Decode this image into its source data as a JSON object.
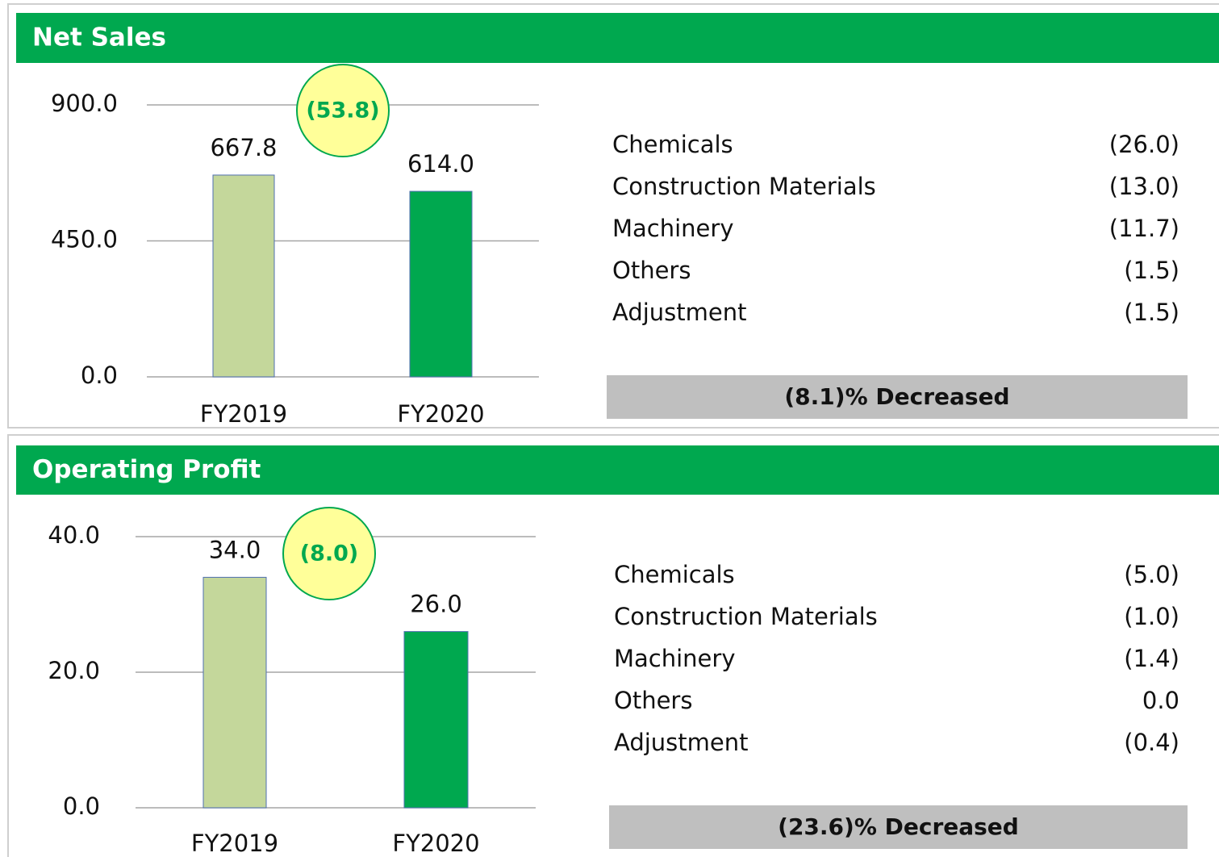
{
  "chart_data": [
    {
      "type": "bar",
      "title": "Net Sales",
      "categories": [
        "FY2019",
        "FY2020"
      ],
      "values": [
        667.8,
        614
      ],
      "value_labels": [
        "667.8",
        "614.0"
      ],
      "colors": [
        "#c4d79b",
        "#00a84f"
      ],
      "ylim": [
        0,
        900
      ],
      "yticks": [
        {
          "value": 0,
          "label": "0.0"
        },
        {
          "value": 450,
          "label": "450.0"
        },
        {
          "value": 900,
          "label": "900.0"
        }
      ],
      "grid": true,
      "annotation": "(53.8)",
      "breakdown": [
        {
          "name": "Chemicals",
          "value": "(26.0)"
        },
        {
          "name": "Construction Materials",
          "value": "(13.0)"
        },
        {
          "name": "Machinery",
          "value": "(11.7)"
        },
        {
          "name": "Others",
          "value": "(1.5)"
        },
        {
          "name": "Adjustment",
          "value": "(1.5)"
        }
      ],
      "summary": "(8.1)% Decreased"
    },
    {
      "type": "bar",
      "title": "Operating Profit",
      "categories": [
        "FY2019",
        "FY2020"
      ],
      "values": [
        34,
        26
      ],
      "value_labels": [
        "34.0",
        "26.0"
      ],
      "colors": [
        "#c4d79b",
        "#00a84f"
      ],
      "ylim": [
        0,
        40
      ],
      "yticks": [
        {
          "value": 0,
          "label": "0.0"
        },
        {
          "value": 20,
          "label": "20.0"
        },
        {
          "value": 40,
          "label": "40.0"
        }
      ],
      "grid": true,
      "annotation": "(8.0)",
      "breakdown": [
        {
          "name": "Chemicals",
          "value": "(5.0)"
        },
        {
          "name": "Construction Materials",
          "value": "(1.0)"
        },
        {
          "name": "Machinery",
          "value": "(1.4)"
        },
        {
          "name": "Others",
          "value": "0.0"
        },
        {
          "name": "Adjustment",
          "value": "(0.4)"
        }
      ],
      "summary": "(23.6)% Decreased"
    }
  ]
}
